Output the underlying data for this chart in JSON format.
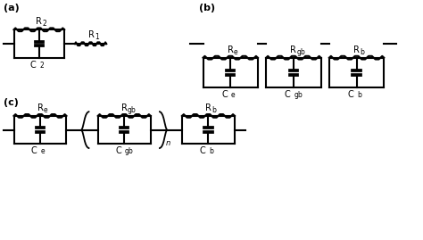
{
  "background_color": "#ffffff",
  "line_color": "#000000",
  "line_width": 1.5,
  "resistor_amp": 0.025,
  "resistor_segments": 8,
  "fig_width": 4.74,
  "fig_height": 2.69,
  "labels": {
    "a": "(a)",
    "b": "(b)",
    "c": "(c)",
    "R2": "R",
    "R2_sub": "2",
    "R1": "R",
    "R1_sub": "1",
    "C2": "C",
    "C2_sub": "2",
    "Re_b": "R",
    "Re_b_sub": "e",
    "Rgb_b": "R",
    "Rgb_b_sub": "gb",
    "Rb_b": "R",
    "Rb_b_sub": "b",
    "Ce_b": "C",
    "Ce_b_sub": "e",
    "Cgb_b": "C",
    "Cgb_b_sub": "gb",
    "Cb_b": "C",
    "Cb_b_sub": "b",
    "Re_c": "R",
    "Re_c_sub": "e",
    "Rgb_c": "R",
    "Rgb_c_sub": "gb",
    "Rb_c": "R",
    "Rb_c_sub": "b",
    "Ce_c": "C",
    "Ce_c_sub": "e",
    "Cgb_c": "C",
    "Cgb_c_sub": "gb",
    "Cb_c": "C",
    "Cb_c_sub": "b",
    "n": "n"
  }
}
